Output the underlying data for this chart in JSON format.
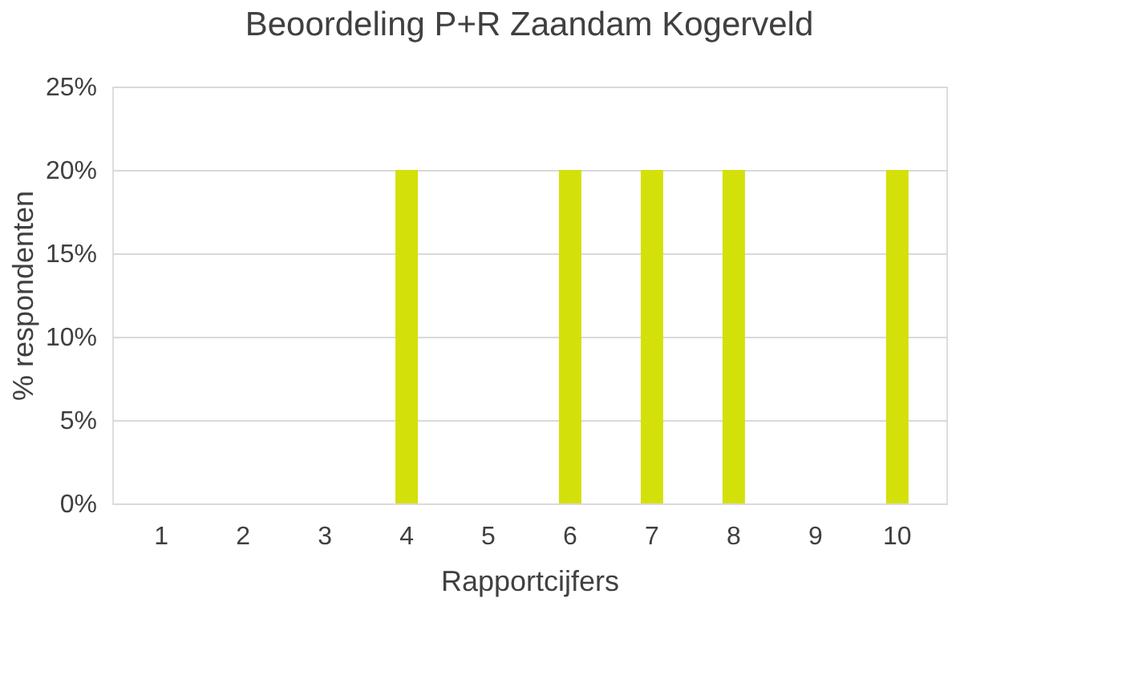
{
  "chart_data": {
    "type": "bar",
    "title": "Beoordeling P+R Zaandam Kogerveld",
    "xlabel": "Rapportcijfers",
    "ylabel": "% respondenten",
    "categories": [
      "1",
      "2",
      "3",
      "4",
      "5",
      "6",
      "7",
      "8",
      "9",
      "10"
    ],
    "values": [
      0,
      0,
      0,
      20,
      0,
      20,
      20,
      20,
      0,
      20
    ],
    "color": "#d4e00a",
    "ylim": [
      0,
      25
    ],
    "yticks": [
      {
        "value": 0,
        "label": "0%"
      },
      {
        "value": 5,
        "label": "5%"
      },
      {
        "value": 10,
        "label": "10%"
      },
      {
        "value": 15,
        "label": "15%"
      },
      {
        "value": 20,
        "label": "20%"
      },
      {
        "value": 25,
        "label": "25%"
      }
    ],
    "grid": "y"
  }
}
